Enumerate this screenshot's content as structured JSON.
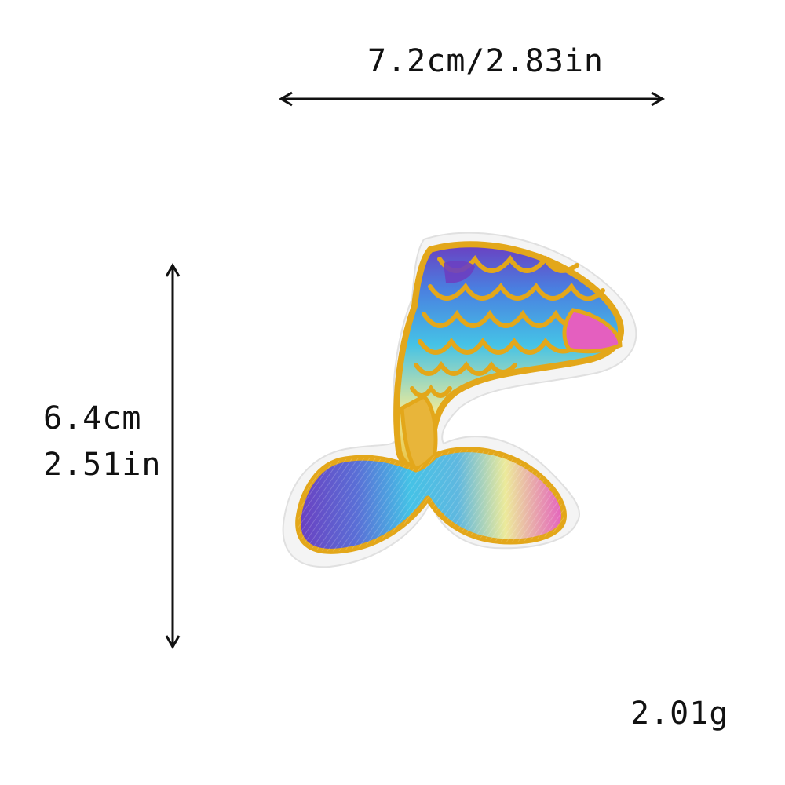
{
  "dimensions": {
    "width_label": "7.2cm/2.83in",
    "height_label_cm": "6.4cm",
    "height_label_in": "2.51in",
    "weight_label": "2.01g"
  },
  "product": {
    "icon": "mermaid-tail-patch-icon",
    "colors": {
      "outline": "#e3a71a",
      "purple": "#6b3fc1",
      "blue": "#4a9fe6",
      "cyan": "#45c2e6",
      "pale_yellow": "#ecea9a",
      "pink": "#e45fbf",
      "border": "#f4f4f4"
    }
  }
}
